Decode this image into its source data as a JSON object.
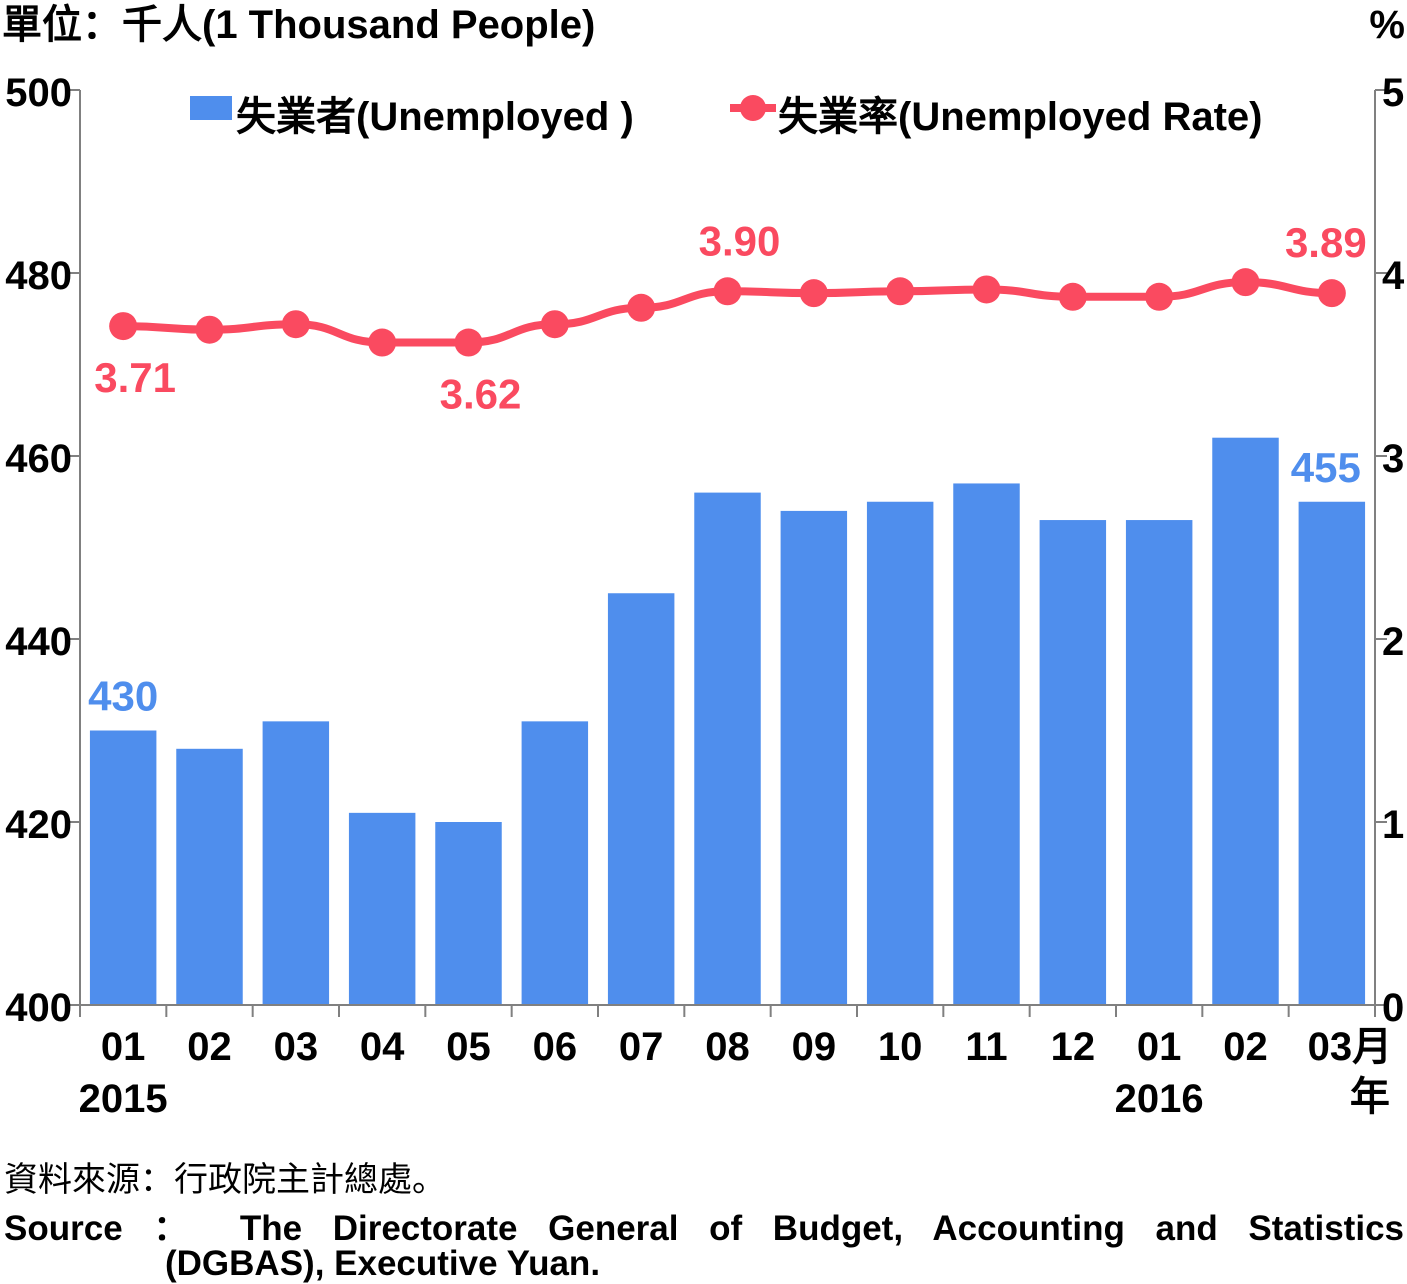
{
  "chart_data": {
    "type": "bar",
    "unit_left": "單位：千人(1 Thousand People)",
    "unit_right": "%",
    "categories": [
      "01",
      "02",
      "03",
      "04",
      "05",
      "06",
      "07",
      "08",
      "09",
      "10",
      "11",
      "12",
      "01",
      "02",
      "03"
    ],
    "x_last_suffix": "月",
    "year_labels": [
      {
        "index": 0,
        "label": "2015"
      },
      {
        "index": 12,
        "label": "2016"
      }
    ],
    "year_suffix": "年",
    "y_left": {
      "min": 400,
      "max": 500,
      "ticks": [
        "400",
        "420",
        "440",
        "460",
        "480",
        "500"
      ]
    },
    "y_right": {
      "min": 0,
      "max": 5,
      "ticks": [
        "0",
        "1",
        "2",
        "3",
        "4",
        "5"
      ]
    },
    "series": [
      {
        "name": "失業者(Unemployed )",
        "type": "bar",
        "axis": "left",
        "color": "#4f8eed",
        "values": [
          430,
          428,
          431,
          421,
          420,
          431,
          445,
          456,
          454,
          455,
          457,
          453,
          453,
          462,
          455
        ],
        "labels": [
          {
            "index": 0,
            "text": "430"
          },
          {
            "index": 14,
            "text": "455"
          }
        ]
      },
      {
        "name": "失業率(Unemployed Rate)",
        "type": "line",
        "axis": "right",
        "color": "#fa4a60",
        "values": [
          3.71,
          3.69,
          3.72,
          3.62,
          3.62,
          3.72,
          3.81,
          3.9,
          3.89,
          3.9,
          3.91,
          3.87,
          3.87,
          3.95,
          3.89
        ],
        "labels": [
          {
            "index": 0,
            "text": "3.71"
          },
          {
            "index": 4,
            "text": "3.62"
          },
          {
            "index": 7,
            "text": "3.90"
          },
          {
            "index": 14,
            "text": "3.89"
          }
        ]
      }
    ],
    "grid": false,
    "legend": "top"
  },
  "source": {
    "cn": "資料來源：行政院主計總處。",
    "en_line1": "Source ： The Directorate General of Budget, Accounting and Statistics",
    "en_line2": "(DGBAS), Executive Yuan."
  }
}
